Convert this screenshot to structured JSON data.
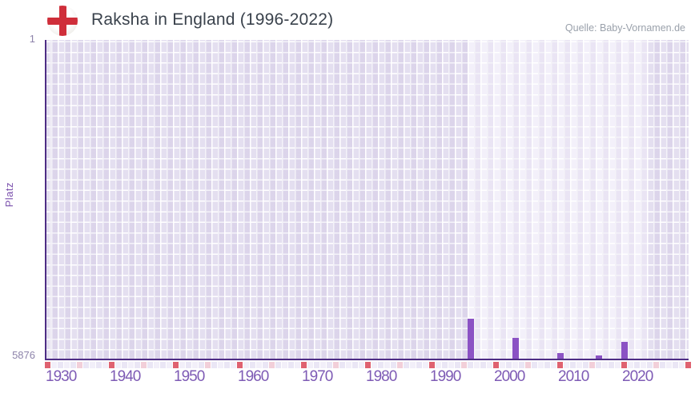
{
  "header": {
    "title": "Raksha in England (1996-2022)",
    "source": "Quelle: Baby-Vornamen.de"
  },
  "y_axis": {
    "top_tick": "1",
    "bottom_tick": "5876",
    "label": "Platz"
  },
  "chart_data": {
    "type": "bar",
    "title": "Raksha in England (1996-2022)",
    "xlabel": "",
    "ylabel": "Platz",
    "y_inverted": true,
    "ylim": [
      1,
      5876
    ],
    "x_range": [
      1930,
      2030
    ],
    "x_tick_labels": [
      "1930",
      "1940",
      "1950",
      "1960",
      "1970",
      "1980",
      "1990",
      "2000",
      "2010",
      "2020"
    ],
    "data_period": {
      "start": 1996,
      "end": 2022
    },
    "bars": [
      {
        "year": 1996,
        "rank": 5140
      },
      {
        "year": 2003,
        "rank": 5495
      },
      {
        "year": 2010,
        "rank": 5770
      },
      {
        "year": 2016,
        "rank": 5815
      },
      {
        "year": 2020,
        "rank": 5570
      }
    ],
    "legend": null,
    "grid": true,
    "colors": {
      "bar": "#8b52c4",
      "axis": "#4e2d85",
      "plot_bg_outside_period": "#e4dff0",
      "plot_bg_inside_period": "#f3f0fa",
      "decade_marker": "#df6270",
      "half_decade_marker": "#f2cfd9",
      "x_tick_text": "#7e5bb5",
      "y_tick_text": "#8d83aa",
      "title_text": "#3a424c",
      "source_text": "#9aa1ab"
    }
  }
}
